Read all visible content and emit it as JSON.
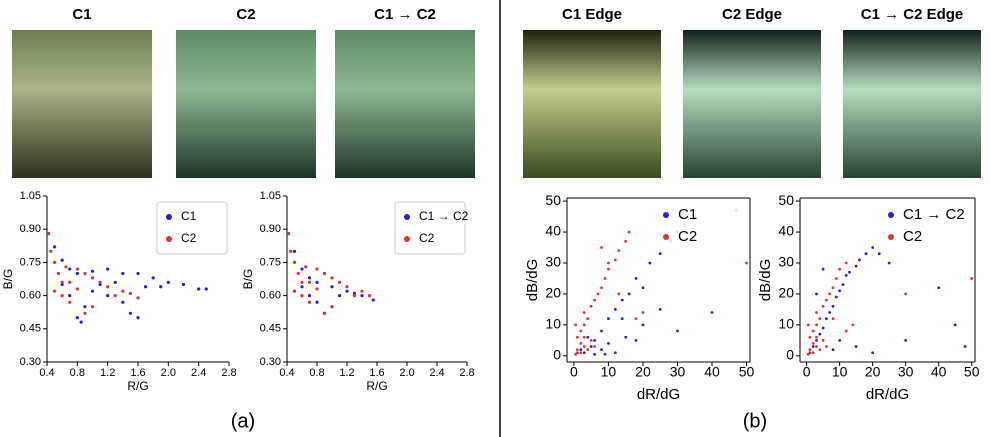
{
  "images": [
    {
      "title": "C1"
    },
    {
      "title": "C2"
    },
    {
      "title": "C1 → C2"
    },
    {
      "title": "C1 Edge"
    },
    {
      "title": "C2 Edge"
    },
    {
      "title": "C1 → C2 Edge"
    }
  ],
  "captions": [
    "(a)",
    "(b)"
  ],
  "chart_data": [
    {
      "type": "scatter",
      "x_label": "R/G",
      "y_label": "B/G",
      "legend": "upper right",
      "grid": false,
      "xlim": [
        0.4,
        2.8
      ],
      "xticks": [
        0.4,
        0.8,
        1.2,
        1.6,
        {
          "value": 2,
          "label": "2.0"
        },
        2.4,
        2.8
      ],
      "ylim": [
        0.3,
        1.05
      ],
      "yticks": [
        {
          "value": 0.3,
          "label": "0.30"
        },
        0.45,
        {
          "value": 0.6,
          "label": "0.60"
        },
        0.75,
        {
          "value": 0.9,
          "label": "0.90"
        },
        1.05
      ],
      "series": [
        {
          "name": "C1",
          "color": "#1f1ff0",
          "x": [
            0.42,
            0.5,
            0.6,
            0.7,
            0.8,
            1.0,
            1.2,
            1.4,
            1.6,
            1.8,
            2.0,
            2.2,
            2.4,
            2.5,
            1.0,
            1.2,
            1.4,
            1.6,
            1.5,
            0.8,
            0.85,
            0.9,
            1.1,
            1.3,
            1.7,
            1.9,
            0.7,
            0.6
          ],
          "values": [
            0.88,
            0.82,
            0.76,
            0.72,
            0.7,
            0.71,
            0.72,
            0.7,
            0.7,
            0.68,
            0.66,
            0.65,
            0.63,
            0.63,
            0.62,
            0.6,
            0.57,
            0.5,
            0.52,
            0.5,
            0.48,
            0.55,
            0.65,
            0.66,
            0.64,
            0.64,
            0.6,
            0.65
          ]
        },
        {
          "name": "C2",
          "color": "#e8302c",
          "x": [
            0.42,
            0.45,
            0.5,
            0.55,
            0.6,
            0.5,
            0.6,
            0.7,
            0.8,
            0.9,
            1.0,
            1.1,
            1.2,
            1.4,
            1.6,
            1.5,
            0.9,
            1.0,
            0.7,
            0.8,
            1.3,
            0.65
          ],
          "values": [
            0.88,
            0.8,
            0.75,
            0.7,
            0.66,
            0.62,
            0.6,
            0.57,
            0.72,
            0.7,
            0.68,
            0.66,
            0.64,
            0.62,
            0.59,
            0.61,
            0.52,
            0.55,
            0.66,
            0.63,
            0.6,
            0.73
          ]
        }
      ]
    },
    {
      "type": "scatter",
      "x_label": "R/G",
      "y_label": "B/G",
      "legend": "upper right",
      "grid": false,
      "xlim": [
        0.4,
        2.8
      ],
      "xticks": [
        0.4,
        0.8,
        1.2,
        1.6,
        {
          "value": 2,
          "label": "2.0"
        },
        2.4,
        2.8
      ],
      "ylim": [
        0.3,
        1.05
      ],
      "yticks": [
        {
          "value": 0.3,
          "label": "0.30"
        },
        0.45,
        {
          "value": 0.6,
          "label": "0.60"
        },
        0.75,
        {
          "value": 0.9,
          "label": "0.90"
        },
        1.05
      ],
      "series": [
        {
          "name": "C1 → C2",
          "color": "#1f1ff0",
          "x": [
            0.42,
            0.5,
            0.6,
            0.7,
            0.8,
            1.0,
            1.2,
            1.4,
            1.55,
            1.0,
            0.9,
            0.7,
            0.6,
            0.5,
            1.1,
            1.3,
            0.8
          ],
          "values": [
            0.88,
            0.8,
            0.72,
            0.68,
            0.66,
            0.64,
            0.62,
            0.6,
            0.58,
            0.55,
            0.52,
            0.6,
            0.64,
            0.62,
            0.6,
            0.61,
            0.57
          ]
        },
        {
          "name": "C2",
          "color": "#e8302c",
          "x": [
            0.42,
            0.45,
            0.5,
            0.55,
            0.6,
            0.5,
            0.6,
            0.7,
            0.8,
            0.9,
            1.0,
            1.1,
            1.2,
            1.4,
            1.5,
            0.9,
            1.0,
            0.7,
            0.8,
            1.3,
            0.65
          ],
          "values": [
            0.88,
            0.8,
            0.75,
            0.7,
            0.66,
            0.62,
            0.6,
            0.57,
            0.72,
            0.7,
            0.68,
            0.66,
            0.64,
            0.62,
            0.6,
            0.52,
            0.55,
            0.66,
            0.63,
            0.6,
            0.73
          ]
        }
      ]
    },
    {
      "type": "scatter",
      "x_label": "dR/dG",
      "y_label": "dB/dG",
      "legend": "upper right",
      "grid": false,
      "xlim": [
        -2,
        51
      ],
      "xticks": [
        0,
        10,
        20,
        30,
        40,
        50
      ],
      "ylim": [
        -2,
        51
      ],
      "yticks": [
        0,
        10,
        20,
        30,
        40,
        50
      ],
      "series": [
        {
          "name": "C1",
          "color": "#1f1ff0",
          "x": [
            1,
            2,
            3,
            5,
            6,
            8,
            10,
            12,
            14,
            16,
            18,
            20,
            22,
            25,
            28,
            30,
            32,
            35,
            8,
            10,
            12,
            15,
            20,
            25,
            30,
            40,
            47,
            6,
            4,
            9,
            14,
            18
          ],
          "values": [
            1,
            2,
            1,
            3,
            5,
            8,
            12,
            15,
            18,
            20,
            25,
            22,
            30,
            33,
            37,
            40,
            42,
            45,
            2,
            4,
            1,
            6,
            10,
            15,
            8,
            14,
            47,
            0.5,
            6,
            0.5,
            12,
            5
          ]
        },
        {
          "name": "C2",
          "color": "#e8302c",
          "x": [
            0.5,
            1,
            2,
            1,
            2,
            3,
            4,
            3,
            5,
            6,
            7,
            8,
            9,
            10,
            12,
            13,
            15,
            16,
            1,
            3,
            5,
            2,
            4,
            6,
            20,
            18,
            8,
            50,
            0.5,
            10,
            13,
            3
          ],
          "values": [
            0.5,
            2,
            4,
            6,
            8,
            10,
            12,
            14,
            16,
            18,
            20,
            22,
            25,
            28,
            31,
            34,
            37,
            40,
            1,
            3,
            5,
            1,
            2,
            3,
            14,
            12,
            35,
            30,
            10,
            30,
            20,
            6
          ]
        }
      ]
    },
    {
      "type": "scatter",
      "x_label": "dR/dG",
      "y_label": "dB/dG",
      "legend": "upper right",
      "grid": false,
      "xlim": [
        -2,
        51
      ],
      "xticks": [
        0,
        10,
        20,
        30,
        40,
        50
      ],
      "ylim": [
        -2,
        51
      ],
      "yticks": [
        0,
        10,
        20,
        30,
        40,
        50
      ],
      "series": [
        {
          "name": "C1 → C2",
          "color": "#1f1ff0",
          "x": [
            0.5,
            1,
            2,
            3,
            4,
            5,
            6,
            7,
            8,
            9,
            10,
            11,
            12,
            13,
            15,
            16,
            18,
            20,
            22,
            25,
            8,
            10,
            15,
            40,
            48,
            30,
            45,
            20,
            3,
            5
          ],
          "values": [
            0.5,
            1,
            3,
            5,
            7,
            9,
            12,
            14,
            16,
            19,
            21,
            23,
            26,
            27,
            29,
            31,
            33,
            35,
            33,
            30,
            2,
            5,
            3,
            22,
            3,
            5,
            10,
            1,
            20,
            28
          ]
        },
        {
          "name": "C2",
          "color": "#e8302c",
          "x": [
            0.5,
            1,
            2,
            1,
            2,
            3,
            4,
            3,
            5,
            6,
            7,
            8,
            9,
            10,
            12,
            1,
            3,
            5,
            2,
            4,
            6,
            14,
            12,
            50,
            0.5,
            30,
            3,
            8
          ],
          "values": [
            0.5,
            2,
            4,
            6,
            8,
            10,
            12,
            14,
            16,
            18,
            20,
            22,
            25,
            28,
            30,
            1,
            3,
            5,
            1,
            2,
            3,
            10,
            8,
            25,
            10,
            20,
            6,
            12
          ]
        }
      ]
    }
  ]
}
